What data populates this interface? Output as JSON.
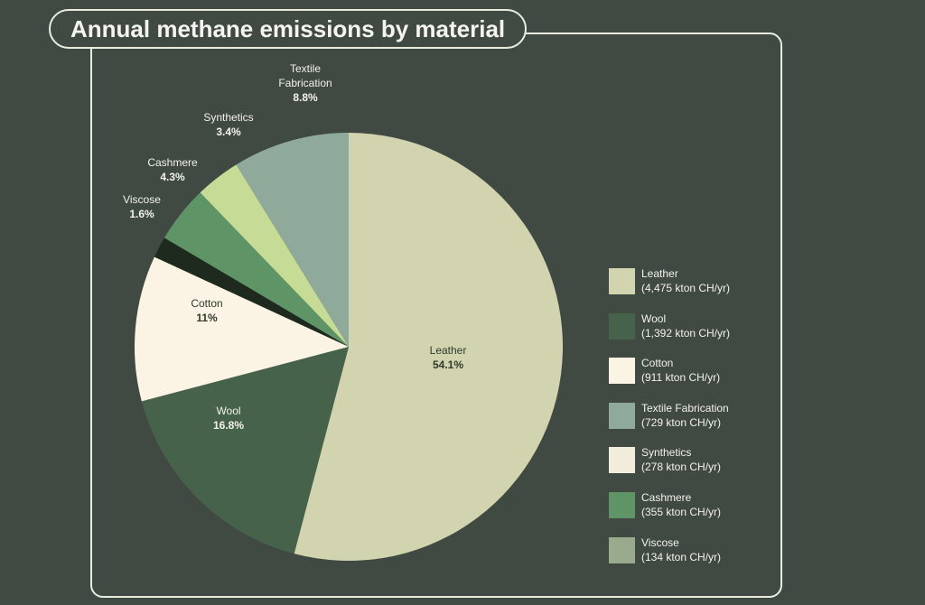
{
  "title": "Annual methane emissions by material",
  "chart_data": {
    "type": "pie",
    "title": "Annual methane emissions by material",
    "slices": [
      {
        "label": "Leather",
        "label_lines": [
          "Leather"
        ],
        "percent": "54.1%",
        "value": 54.1,
        "color": "#d1d4ae",
        "label_color": "#2f3a2c"
      },
      {
        "label": "Wool",
        "label_lines": [
          "Wool"
        ],
        "percent": "16.8%",
        "value": 16.8,
        "color": "#46624a",
        "label_color": "#f2f2ea"
      },
      {
        "label": "Cotton",
        "label_lines": [
          "Cotton"
        ],
        "percent": "11%",
        "value": 11.0,
        "color": "#fbf4e4",
        "label_color": "#2f3a2c"
      },
      {
        "label": "Viscose",
        "label_lines": [
          "Viscose"
        ],
        "percent": "1.6%",
        "value": 1.6,
        "color": "#1f2a1e",
        "label_color": "#f2f2ea"
      },
      {
        "label": "Cashmere",
        "label_lines": [
          "Cashmere"
        ],
        "percent": "4.3%",
        "value": 4.3,
        "color": "#5e9466",
        "label_color": "#f2f2ea"
      },
      {
        "label": "Synthetics",
        "label_lines": [
          "Synthetics"
        ],
        "percent": "3.4%",
        "value": 3.4,
        "color": "#c6dc96",
        "label_color": "#f2f2ea"
      },
      {
        "label": "Textile Fabrication",
        "label_lines": [
          "Textile",
          "Fabrication"
        ],
        "percent": "8.8%",
        "value": 8.8,
        "color": "#8fa99a",
        "label_color": "#f2f2ea"
      }
    ],
    "legend": [
      {
        "name": "Leather",
        "detail": "(4,475 kton CH/yr)",
        "color": "#d1d4ae"
      },
      {
        "name": "Wool",
        "detail": "(1,392 kton CH/yr)",
        "color": "#46624a"
      },
      {
        "name": "Cotton",
        "detail": "(911 kton CH/yr)",
        "color": "#fbf4e4"
      },
      {
        "name": "Textile Fabrication",
        "detail": "(729 kton CH/yr)",
        "color": "#8fa99a"
      },
      {
        "name": "Synthetics",
        "detail": "(278 kton CH/yr)",
        "color": "#f1ecdb"
      },
      {
        "name": "Cashmere",
        "detail": "(355 kton CH/yr)",
        "color": "#5e9466"
      },
      {
        "name": "Viscose",
        "detail": "(134 kton CH/yr)",
        "color": "#9aaa8c"
      }
    ],
    "legend_placement": "right"
  }
}
